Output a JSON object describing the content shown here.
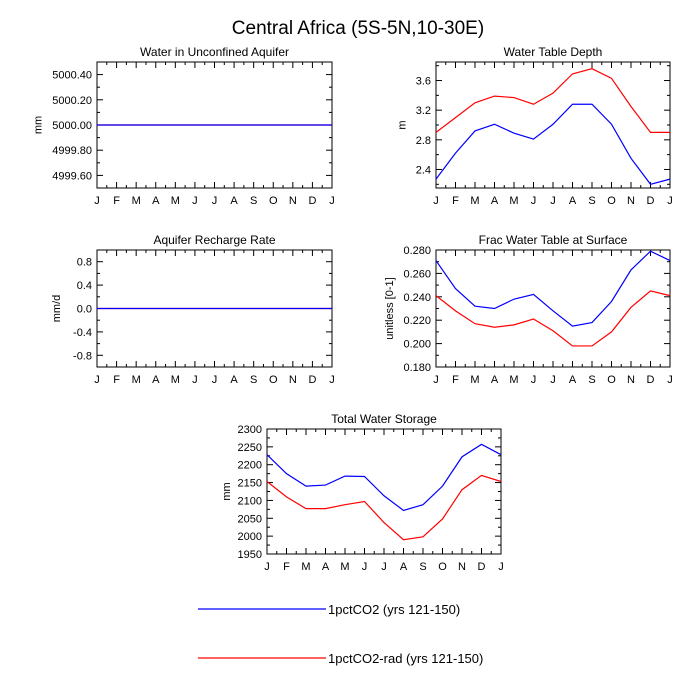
{
  "figure": {
    "title": "Central Africa (5S-5N,10-30E)"
  },
  "chart_data": [
    {
      "type": "line",
      "title": "Water in Unconfined Aquifer",
      "ylabel": "mm",
      "categories": [
        "J",
        "F",
        "M",
        "A",
        "M",
        "J",
        "J",
        "A",
        "S",
        "O",
        "N",
        "D",
        "J"
      ],
      "ylim": [
        4999.5,
        5000.5
      ],
      "yticks": [
        4999.6,
        4999.8,
        5000.0,
        5000.2,
        5000.4
      ],
      "ytick_labels": [
        "4999.60",
        "4999.80",
        "5000.00",
        "5000.20",
        "5000.40"
      ],
      "series": [
        {
          "name": "1pctCO2 (yrs 121-150)",
          "color": "#ff0000",
          "values": [
            5000,
            5000,
            5000,
            5000,
            5000,
            5000,
            5000,
            5000,
            5000,
            5000,
            5000,
            5000,
            5000
          ]
        },
        {
          "name": "1pctCO2-rad (yrs 121-150)",
          "color": "#0000ff",
          "values": [
            5000,
            5000,
            5000,
            5000,
            5000,
            5000,
            5000,
            5000,
            5000,
            5000,
            5000,
            5000,
            5000
          ]
        }
      ]
    },
    {
      "type": "line",
      "title": "Water Table Depth",
      "ylabel": "m",
      "categories": [
        "J",
        "F",
        "M",
        "A",
        "M",
        "J",
        "J",
        "A",
        "S",
        "O",
        "N",
        "D",
        "J"
      ],
      "ylim": [
        2.15,
        3.85
      ],
      "yticks": [
        2.4,
        2.8,
        3.2,
        3.6
      ],
      "ytick_labels": [
        "2.4",
        "2.8",
        "3.2",
        "3.6"
      ],
      "series": [
        {
          "name": "1pctCO2 (yrs 121-150)",
          "color": "#0000ff",
          "values": [
            2.27,
            2.62,
            2.92,
            3.01,
            2.89,
            2.81,
            3.01,
            3.28,
            3.28,
            3.01,
            2.55,
            2.2,
            2.27
          ]
        },
        {
          "name": "1pctCO2-rad (yrs 121-150)",
          "color": "#ff0000",
          "values": [
            2.9,
            3.1,
            3.3,
            3.39,
            3.37,
            3.28,
            3.43,
            3.69,
            3.76,
            3.63,
            3.25,
            2.9,
            2.9
          ]
        }
      ]
    },
    {
      "type": "line",
      "title": "Aquifer Recharge Rate",
      "ylabel": "mm/d",
      "categories": [
        "J",
        "F",
        "M",
        "A",
        "M",
        "J",
        "J",
        "A",
        "S",
        "O",
        "N",
        "D",
        "J"
      ],
      "ylim": [
        -1.0,
        1.0
      ],
      "yticks": [
        -0.8,
        -0.4,
        0.0,
        0.4,
        0.8
      ],
      "ytick_labels": [
        "-0.8",
        "-0.4",
        "0.0",
        "0.4",
        "0.8"
      ],
      "series": [
        {
          "name": "1pctCO2 (yrs 121-150)",
          "color": "#ff0000",
          "values": [
            0,
            0,
            0,
            0,
            0,
            0,
            0,
            0,
            0,
            0,
            0,
            0,
            0
          ]
        },
        {
          "name": "1pctCO2-rad (yrs 121-150)",
          "color": "#0000ff",
          "values": [
            0,
            0,
            0,
            0,
            0,
            0,
            0,
            0,
            0,
            0,
            0,
            0,
            0
          ]
        }
      ]
    },
    {
      "type": "line",
      "title": "Frac Water Table at Surface",
      "ylabel": "unitless [0-1]",
      "categories": [
        "J",
        "F",
        "M",
        "A",
        "M",
        "J",
        "J",
        "A",
        "S",
        "O",
        "N",
        "D",
        "J"
      ],
      "ylim": [
        0.18,
        0.28
      ],
      "yticks": [
        0.18,
        0.2,
        0.22,
        0.24,
        0.26,
        0.28
      ],
      "ytick_labels": [
        "0.180",
        "0.200",
        "0.220",
        "0.240",
        "0.260",
        "0.280"
      ],
      "series": [
        {
          "name": "1pctCO2 (yrs 121-150)",
          "color": "#0000ff",
          "values": [
            0.271,
            0.247,
            0.232,
            0.23,
            0.238,
            0.242,
            0.228,
            0.215,
            0.218,
            0.236,
            0.263,
            0.279,
            0.271
          ]
        },
        {
          "name": "1pctCO2-rad (yrs 121-150)",
          "color": "#ff0000",
          "values": [
            0.241,
            0.228,
            0.217,
            0.214,
            0.216,
            0.221,
            0.211,
            0.198,
            0.198,
            0.21,
            0.231,
            0.245,
            0.241
          ]
        }
      ]
    },
    {
      "type": "line",
      "title": "Total Water Storage",
      "ylabel": "mm",
      "categories": [
        "J",
        "F",
        "M",
        "A",
        "M",
        "J",
        "J",
        "A",
        "S",
        "O",
        "N",
        "D",
        "J"
      ],
      "ylim": [
        1950,
        2300
      ],
      "yticks": [
        1950,
        2000,
        2050,
        2100,
        2150,
        2200,
        2250,
        2300
      ],
      "ytick_labels": [
        "1950",
        "2000",
        "2050",
        "2100",
        "2150",
        "2200",
        "2250",
        "2300"
      ],
      "series": [
        {
          "name": "1pctCO2 (yrs 121-150)",
          "color": "#0000ff",
          "values": [
            2228,
            2175,
            2140,
            2143,
            2168,
            2167,
            2113,
            2072,
            2088,
            2140,
            2222,
            2257,
            2228
          ]
        },
        {
          "name": "1pctCO2-rad (yrs 121-150)",
          "color": "#ff0000",
          "values": [
            2153,
            2110,
            2077,
            2077,
            2088,
            2097,
            2038,
            1990,
            1998,
            2048,
            2130,
            2170,
            2153
          ]
        }
      ]
    }
  ],
  "legend": {
    "position": "bottom",
    "items": [
      {
        "label": "1pctCO2 (yrs 121-150)",
        "color": "#0000ff"
      },
      {
        "label": "1pctCO2-rad (yrs 121-150)",
        "color": "#ff0000"
      }
    ]
  }
}
